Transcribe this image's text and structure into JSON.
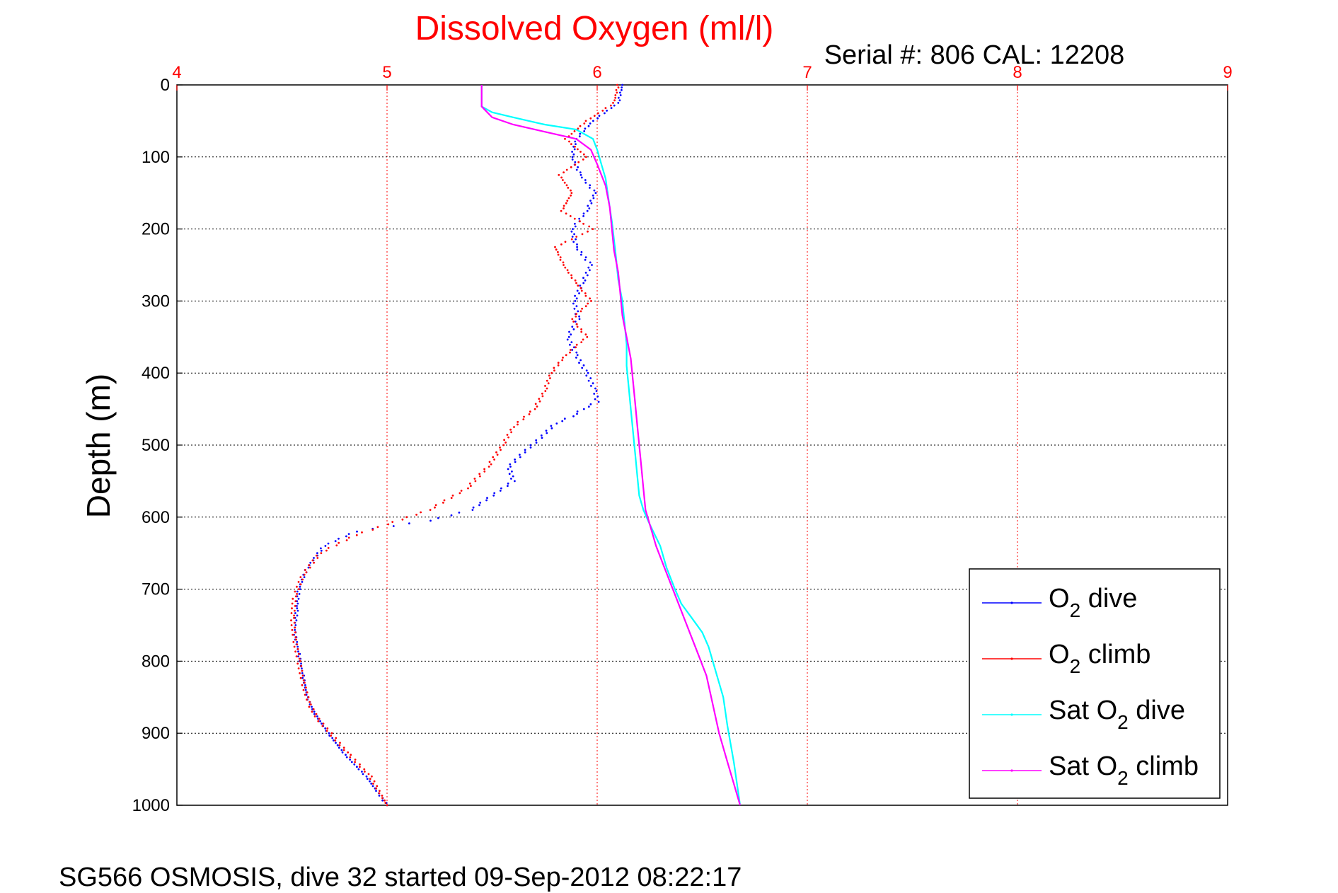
{
  "chart_data": {
    "type": "line",
    "title": "Dissolved Oxygen (ml/l)",
    "subtitle": "Serial #: 806  CAL: 12208",
    "ylabel": "Depth (m)",
    "xlabel": "",
    "footer": "SG566 OSMOSIS, dive 32 started 09-Sep-2012 08:22:17",
    "xlim": [
      4,
      9
    ],
    "ylim": [
      0,
      1000
    ],
    "y_reversed": true,
    "x_axis_position": "top",
    "x_ticks": [
      "4",
      "5",
      "6",
      "7",
      "8",
      "9"
    ],
    "y_ticks": [
      "0",
      "100",
      "200",
      "300",
      "400",
      "500",
      "600",
      "700",
      "800",
      "900",
      "1000"
    ],
    "grid": true,
    "legend_position": "bottom-right",
    "series": [
      {
        "name": "O2 dive",
        "legend_main": "O",
        "legend_sub": "2",
        "legend_tail": " dive",
        "color": "#0000ff",
        "style": "dots",
        "x": [
          6.12,
          6.1,
          5.98,
          5.9,
          5.88,
          5.92,
          5.99,
          5.95,
          5.88,
          5.9,
          5.97,
          5.93,
          5.89,
          5.91,
          5.86,
          5.9,
          5.95,
          5.99,
          6.0,
          5.93,
          5.88,
          5.8,
          5.73,
          5.65,
          5.58,
          5.6,
          5.5,
          5.4,
          5.2,
          4.85,
          4.7,
          4.62,
          4.58,
          4.57,
          4.56,
          4.58,
          4.6,
          4.62,
          4.65,
          4.72,
          4.8,
          4.9,
          5.0
        ],
        "y": [
          0,
          25,
          50,
          75,
          100,
          125,
          150,
          175,
          200,
          225,
          250,
          275,
          300,
          325,
          350,
          375,
          400,
          425,
          440,
          450,
          460,
          470,
          490,
          510,
          530,
          550,
          570,
          590,
          605,
          620,
          640,
          670,
          700,
          730,
          760,
          790,
          820,
          850,
          870,
          900,
          930,
          960,
          1000
        ]
      },
      {
        "name": "O2 climb",
        "legend_main": "O",
        "legend_sub": "2",
        "legend_tail": " climb",
        "color": "#ff0000",
        "style": "dots",
        "x": [
          6.1,
          6.08,
          5.95,
          5.85,
          5.95,
          5.82,
          5.88,
          5.83,
          5.98,
          5.8,
          5.84,
          5.9,
          5.97,
          5.88,
          5.95,
          5.85,
          5.78,
          5.75,
          5.7,
          5.6,
          5.55,
          5.48,
          5.38,
          5.2,
          5.0,
          4.85,
          4.68,
          4.6,
          4.56,
          4.55,
          4.56,
          4.58,
          4.6,
          4.63,
          4.67,
          4.73,
          4.82,
          4.92,
          5.0
        ],
        "y": [
          0,
          25,
          50,
          75,
          100,
          125,
          150,
          175,
          200,
          225,
          250,
          275,
          300,
          325,
          350,
          375,
          400,
          425,
          450,
          475,
          500,
          530,
          560,
          590,
          610,
          625,
          650,
          680,
          710,
          740,
          770,
          800,
          830,
          860,
          880,
          900,
          930,
          960,
          1000
        ]
      },
      {
        "name": "Sat O2 dive",
        "legend_main": "Sat O",
        "legend_sub": "2",
        "legend_tail": " dive",
        "color": "#00ffff",
        "style": "line",
        "x": [
          5.45,
          5.45,
          5.45,
          5.5,
          5.6,
          5.75,
          5.9,
          5.98,
          6.0,
          6.02,
          6.04,
          6.05,
          6.06,
          6.07,
          6.08,
          6.09,
          6.1,
          6.12,
          6.13,
          6.14,
          6.14,
          6.15,
          6.16,
          6.17,
          6.18,
          6.19,
          6.2,
          6.22,
          6.25,
          6.3,
          6.33,
          6.37,
          6.4,
          6.45,
          6.5,
          6.53,
          6.56,
          6.6,
          6.62,
          6.65,
          6.68
        ],
        "y": [
          0,
          15,
          30,
          38,
          45,
          55,
          62,
          75,
          90,
          110,
          130,
          150,
          170,
          190,
          215,
          240,
          270,
          300,
          330,
          360,
          390,
          420,
          450,
          480,
          510,
          540,
          570,
          590,
          610,
          640,
          670,
          700,
          720,
          740,
          760,
          780,
          810,
          850,
          890,
          940,
          1000
        ]
      },
      {
        "name": "Sat O2 climb",
        "legend_main": "Sat O",
        "legend_sub": "2",
        "legend_tail": " climb",
        "color": "#ff00ff",
        "style": "line",
        "x": [
          5.45,
          5.45,
          5.45,
          5.5,
          5.6,
          5.75,
          5.9,
          5.97,
          6.0,
          6.04,
          6.06,
          6.07,
          6.08,
          6.1,
          6.11,
          6.12,
          6.14,
          6.16,
          6.17,
          6.18,
          6.19,
          6.2,
          6.21,
          6.22,
          6.23,
          6.25,
          6.28,
          6.32,
          6.36,
          6.4,
          6.44,
          6.48,
          6.52,
          6.55,
          6.58,
          6.62,
          6.65,
          6.68
        ],
        "y": [
          0,
          15,
          30,
          45,
          55,
          65,
          75,
          90,
          110,
          140,
          170,
          200,
          230,
          260,
          290,
          320,
          350,
          380,
          410,
          440,
          470,
          500,
          530,
          560,
          590,
          610,
          640,
          670,
          700,
          730,
          760,
          790,
          820,
          860,
          900,
          940,
          970,
          1000
        ]
      }
    ]
  }
}
